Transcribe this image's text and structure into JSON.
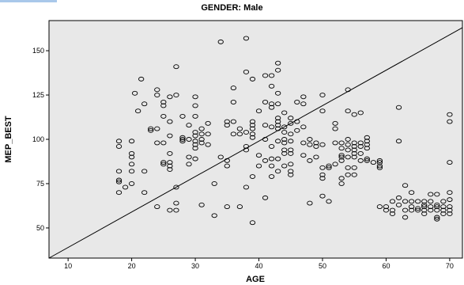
{
  "chart_data": {
    "type": "scatter",
    "title": "GENDER: Male",
    "xlabel": "AGE",
    "ylabel": "MEP_BEST",
    "xlim": [
      7,
      72
    ],
    "ylim": [
      33,
      167
    ],
    "xticks": [
      10,
      20,
      30,
      40,
      50,
      60,
      70
    ],
    "yticks": [
      50,
      75,
      100,
      125,
      150
    ],
    "grid": false,
    "legend": "none",
    "reference_line": {
      "from": [
        7,
        33
      ],
      "to": [
        72,
        163
      ]
    },
    "colors": {
      "plot_background": "#e8e8e8",
      "marker": "#000000",
      "line": "#000000"
    },
    "points": [
      [
        18,
        99
      ],
      [
        18,
        96
      ],
      [
        18,
        82
      ],
      [
        18,
        77
      ],
      [
        18,
        76
      ],
      [
        18,
        70
      ],
      [
        19,
        73
      ],
      [
        20,
        99
      ],
      [
        20,
        92
      ],
      [
        20,
        90
      ],
      [
        20,
        86
      ],
      [
        20,
        82
      ],
      [
        20,
        75
      ],
      [
        20.5,
        126
      ],
      [
        21,
        116
      ],
      [
        21.5,
        134
      ],
      [
        22,
        120
      ],
      [
        22,
        82
      ],
      [
        22,
        70
      ],
      [
        23,
        106
      ],
      [
        23,
        105
      ],
      [
        24,
        128
      ],
      [
        24,
        125
      ],
      [
        24,
        106
      ],
      [
        24,
        98
      ],
      [
        24,
        62
      ],
      [
        25,
        121
      ],
      [
        25,
        119
      ],
      [
        25,
        113
      ],
      [
        25,
        98
      ],
      [
        25,
        87
      ],
      [
        25,
        86
      ],
      [
        26,
        124
      ],
      [
        26,
        110
      ],
      [
        26,
        102
      ],
      [
        26,
        92
      ],
      [
        26,
        87
      ],
      [
        26,
        85
      ],
      [
        26,
        83
      ],
      [
        26,
        60
      ],
      [
        27,
        141
      ],
      [
        27,
        125
      ],
      [
        27,
        73
      ],
      [
        27,
        64
      ],
      [
        27,
        60
      ],
      [
        28,
        113
      ],
      [
        28,
        101
      ],
      [
        28,
        99
      ],
      [
        28,
        100
      ],
      [
        29,
        108
      ],
      [
        29,
        100
      ],
      [
        29,
        90
      ],
      [
        29,
        86
      ],
      [
        30,
        124
      ],
      [
        30,
        119
      ],
      [
        30,
        113
      ],
      [
        30,
        104
      ],
      [
        30,
        102
      ],
      [
        30,
        99
      ],
      [
        30,
        97
      ],
      [
        30,
        95
      ],
      [
        30,
        89
      ],
      [
        31,
        106
      ],
      [
        31,
        103
      ],
      [
        31,
        100
      ],
      [
        31,
        98
      ],
      [
        31,
        63
      ],
      [
        32,
        109
      ],
      [
        32,
        103
      ],
      [
        32,
        97
      ],
      [
        33,
        75
      ],
      [
        33,
        57
      ],
      [
        34,
        155
      ],
      [
        34,
        90
      ],
      [
        35,
        110
      ],
      [
        35,
        108
      ],
      [
        35,
        88
      ],
      [
        35,
        85
      ],
      [
        35,
        62
      ],
      [
        36,
        129
      ],
      [
        36,
        121
      ],
      [
        36,
        110
      ],
      [
        36,
        103
      ],
      [
        37,
        106
      ],
      [
        37,
        103
      ],
      [
        37,
        62
      ],
      [
        38,
        157
      ],
      [
        38,
        138
      ],
      [
        38,
        104
      ],
      [
        38,
        96
      ],
      [
        38,
        94
      ],
      [
        38,
        73
      ],
      [
        39,
        134
      ],
      [
        39,
        110
      ],
      [
        39,
        108
      ],
      [
        39,
        106
      ],
      [
        39,
        103
      ],
      [
        39,
        101
      ],
      [
        39,
        79
      ],
      [
        39,
        53
      ],
      [
        40,
        116
      ],
      [
        40,
        91
      ],
      [
        40,
        85
      ],
      [
        41,
        136
      ],
      [
        41,
        121
      ],
      [
        41,
        108
      ],
      [
        41,
        100
      ],
      [
        41,
        88
      ],
      [
        41,
        67
      ],
      [
        42,
        136
      ],
      [
        42,
        130
      ],
      [
        42,
        120
      ],
      [
        42,
        118
      ],
      [
        42,
        107
      ],
      [
        42,
        96
      ],
      [
        42,
        89
      ],
      [
        42,
        85
      ],
      [
        42,
        79
      ],
      [
        43,
        143
      ],
      [
        43,
        139
      ],
      [
        43,
        126
      ],
      [
        43,
        120
      ],
      [
        43,
        112
      ],
      [
        43,
        110
      ],
      [
        43,
        108
      ],
      [
        43,
        106
      ],
      [
        43,
        99
      ],
      [
        43,
        89
      ],
      [
        43,
        82
      ],
      [
        44,
        115
      ],
      [
        44,
        107
      ],
      [
        44,
        104
      ],
      [
        44,
        100
      ],
      [
        44,
        98
      ],
      [
        44,
        94
      ],
      [
        44,
        92
      ],
      [
        44,
        85
      ],
      [
        45,
        112
      ],
      [
        45,
        109
      ],
      [
        45,
        103
      ],
      [
        45,
        99
      ],
      [
        45,
        94
      ],
      [
        45,
        92
      ],
      [
        45,
        86
      ],
      [
        45,
        82
      ],
      [
        45,
        80
      ],
      [
        46,
        121
      ],
      [
        46,
        110
      ],
      [
        46,
        105
      ],
      [
        47,
        124
      ],
      [
        47,
        120
      ],
      [
        47,
        107
      ],
      [
        47,
        98
      ],
      [
        47,
        91
      ],
      [
        48,
        100
      ],
      [
        48,
        97
      ],
      [
        48,
        88
      ],
      [
        48,
        64
      ],
      [
        49,
        98
      ],
      [
        49,
        96
      ],
      [
        49,
        90
      ],
      [
        50,
        125
      ],
      [
        50,
        116
      ],
      [
        50,
        97
      ],
      [
        50,
        84
      ],
      [
        50,
        80
      ],
      [
        50,
        78
      ],
      [
        50,
        68
      ],
      [
        51,
        85
      ],
      [
        51,
        84
      ],
      [
        51,
        65
      ],
      [
        52,
        109
      ],
      [
        52,
        106
      ],
      [
        52,
        98
      ],
      [
        52,
        86
      ],
      [
        53,
        98
      ],
      [
        53,
        95
      ],
      [
        53,
        91
      ],
      [
        53,
        90
      ],
      [
        53,
        88
      ],
      [
        53,
        78
      ],
      [
        53,
        75
      ],
      [
        54,
        128
      ],
      [
        54,
        116
      ],
      [
        54,
        100
      ],
      [
        54,
        97
      ],
      [
        54,
        94
      ],
      [
        54,
        90
      ],
      [
        54,
        84
      ],
      [
        54,
        80
      ],
      [
        55,
        114
      ],
      [
        55,
        98
      ],
      [
        55,
        96
      ],
      [
        55,
        94
      ],
      [
        55,
        92
      ],
      [
        55,
        90
      ],
      [
        55,
        84
      ],
      [
        55,
        80
      ],
      [
        56,
        115
      ],
      [
        56,
        98
      ],
      [
        56,
        96
      ],
      [
        56,
        92
      ],
      [
        56,
        88
      ],
      [
        57,
        101
      ],
      [
        57,
        99
      ],
      [
        57,
        97
      ],
      [
        57,
        95
      ],
      [
        57,
        89
      ],
      [
        57,
        88
      ],
      [
        58,
        87
      ],
      [
        59,
        88
      ],
      [
        59,
        87
      ],
      [
        59,
        85
      ],
      [
        59,
        84
      ],
      [
        59,
        62
      ],
      [
        60,
        62
      ],
      [
        60,
        60
      ],
      [
        61,
        65
      ],
      [
        61,
        60
      ],
      [
        61,
        58
      ],
      [
        62,
        118
      ],
      [
        62,
        99
      ],
      [
        62,
        67
      ],
      [
        62,
        63
      ],
      [
        63,
        74
      ],
      [
        63,
        65
      ],
      [
        63,
        60
      ],
      [
        63,
        56
      ],
      [
        64,
        70
      ],
      [
        64,
        65
      ],
      [
        64,
        62
      ],
      [
        64,
        60
      ],
      [
        65,
        65
      ],
      [
        65,
        61
      ],
      [
        65,
        60
      ],
      [
        66,
        65
      ],
      [
        66,
        63
      ],
      [
        66,
        62
      ],
      [
        66,
        60
      ],
      [
        66,
        58
      ],
      [
        67,
        69
      ],
      [
        67,
        65
      ],
      [
        67,
        62
      ],
      [
        67,
        60
      ],
      [
        68,
        69
      ],
      [
        68,
        63
      ],
      [
        68,
        62
      ],
      [
        68,
        60
      ],
      [
        68,
        56
      ],
      [
        68,
        55
      ],
      [
        69,
        65
      ],
      [
        69,
        62
      ],
      [
        69,
        60
      ],
      [
        69,
        58
      ],
      [
        70,
        114
      ],
      [
        70,
        110
      ],
      [
        70,
        87
      ],
      [
        70,
        70
      ],
      [
        70,
        66
      ],
      [
        70,
        62
      ],
      [
        70,
        60
      ],
      [
        70,
        58
      ]
    ]
  }
}
